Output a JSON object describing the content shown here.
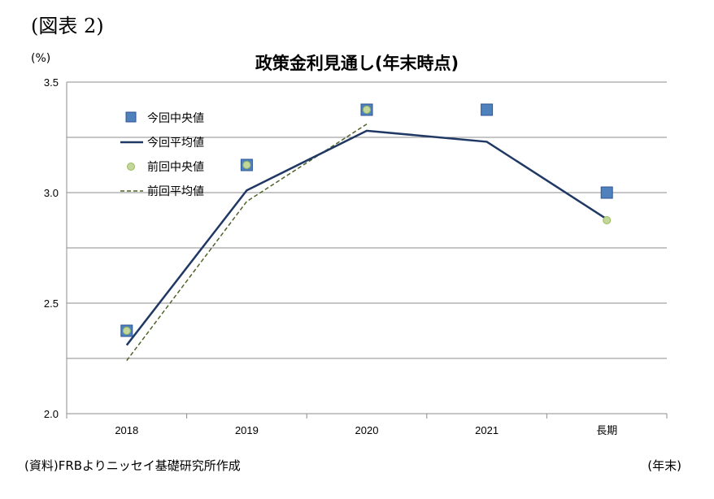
{
  "figure_label": "(図表 2)",
  "source_note": "(資料)FRBよりニッセイ基礎研究所作成",
  "colors": {
    "current_median": "#4f81bd",
    "current_mean": "#1f3864",
    "previous_median": "#c3d69b",
    "previous_mean": "#4f6228"
  },
  "chart_data": {
    "type": "line",
    "title": "政策金利見通し(年末時点)",
    "ylabel": "(%)",
    "xlabel": "(年末)",
    "categories": [
      "2018",
      "2019",
      "2020",
      "2021",
      "長期"
    ],
    "ylim": [
      2.0,
      3.5
    ],
    "yticks": [
      "2.0",
      "2.5",
      "3.0",
      "3.5"
    ],
    "grid": true,
    "legend_position": "top-left",
    "series": [
      {
        "name": "今回中央値",
        "kind": "marker-square",
        "values": [
          2.375,
          3.125,
          3.375,
          3.375,
          3.0
        ]
      },
      {
        "name": "今回平均値",
        "kind": "line-solid",
        "values": [
          2.31,
          3.01,
          3.28,
          3.23,
          2.88
        ]
      },
      {
        "name": "前回中央値",
        "kind": "marker-circle",
        "values": [
          2.375,
          3.125,
          3.375,
          null,
          2.875
        ]
      },
      {
        "name": "前回平均値",
        "kind": "line-dashed",
        "values": [
          2.24,
          2.96,
          3.31,
          null,
          null
        ]
      }
    ]
  }
}
